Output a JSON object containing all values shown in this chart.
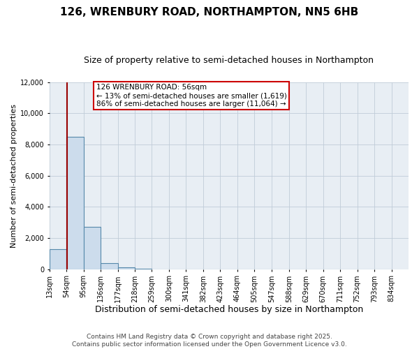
{
  "title": "126, WRENBURY ROAD, NORTHAMPTON, NN5 6HB",
  "subtitle": "Size of property relative to semi-detached houses in Northampton",
  "xlabel": "Distribution of semi-detached houses by size in Northampton",
  "ylabel": "Number of semi-detached properties",
  "bin_labels": [
    "13sqm",
    "54sqm",
    "95sqm",
    "136sqm",
    "177sqm",
    "218sqm",
    "259sqm",
    "300sqm",
    "341sqm",
    "382sqm",
    "423sqm",
    "464sqm",
    "505sqm",
    "547sqm",
    "588sqm",
    "629sqm",
    "670sqm",
    "711sqm",
    "752sqm",
    "793sqm",
    "834sqm"
  ],
  "bin_edges": [
    13,
    54,
    95,
    136,
    177,
    218,
    259,
    300,
    341,
    382,
    423,
    464,
    505,
    547,
    588,
    629,
    670,
    711,
    752,
    793,
    834
  ],
  "bar_heights": [
    1300,
    8500,
    2700,
    370,
    100,
    50,
    0,
    0,
    0,
    0,
    0,
    0,
    0,
    0,
    0,
    0,
    0,
    0,
    0,
    0
  ],
  "bar_color": "#ccdcec",
  "bar_edge_color": "#5588aa",
  "property_size": 56,
  "property_line_color": "#990000",
  "annotation_title": "126 WRENBURY ROAD: 56sqm",
  "annotation_line2": "← 13% of semi-detached houses are smaller (1,619)",
  "annotation_line3": "86% of semi-detached houses are larger (11,064) →",
  "annotation_box_facecolor": "#ffffff",
  "annotation_box_edgecolor": "#cc0000",
  "ylim": [
    0,
    12000
  ],
  "yticks": [
    0,
    2000,
    4000,
    6000,
    8000,
    10000,
    12000
  ],
  "footer_line1": "Contains HM Land Registry data © Crown copyright and database right 2025.",
  "footer_line2": "Contains public sector information licensed under the Open Government Licence v3.0.",
  "bg_color": "#ffffff",
  "plot_bg_color": "#e8eef4",
  "grid_color": "#c0ccd8",
  "title_fontsize": 11,
  "subtitle_fontsize": 9,
  "xlabel_fontsize": 9,
  "ylabel_fontsize": 8,
  "tick_fontsize": 7,
  "annotation_fontsize": 7.5,
  "footer_fontsize": 6.5
}
